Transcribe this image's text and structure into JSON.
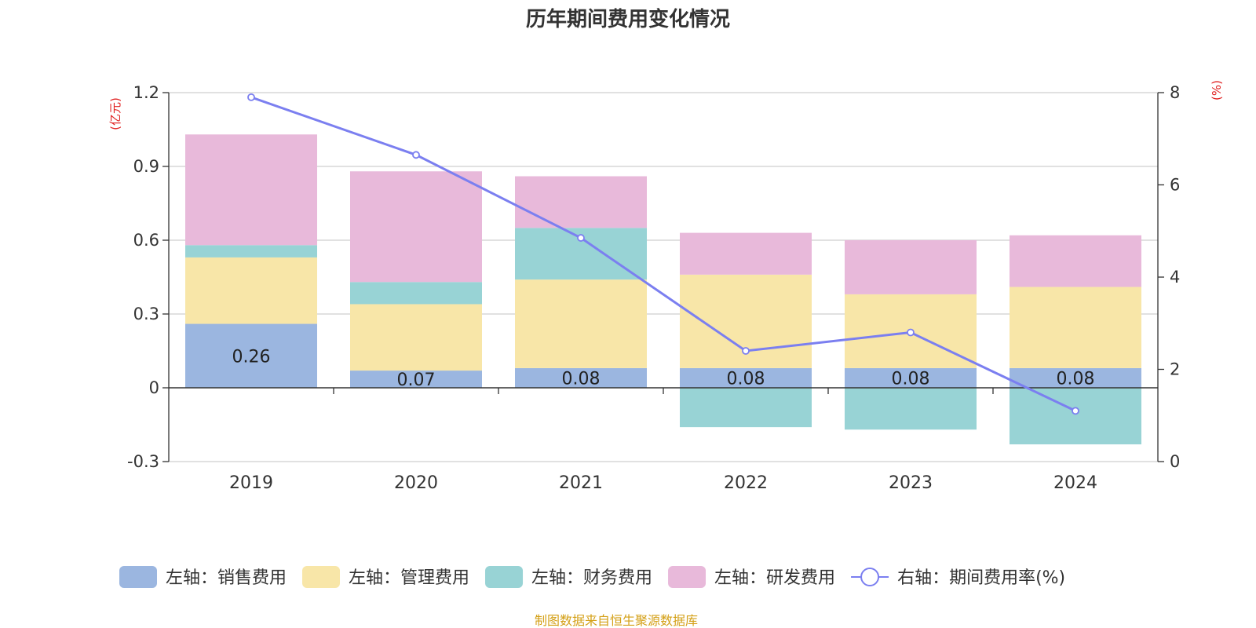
{
  "chart_data": {
    "type": "bar",
    "title": "历年期间费用变化情况",
    "source": "制图数据来自恒生聚源数据库",
    "left_axis_unit": "(亿元)",
    "right_axis_unit": "(%)",
    "categories": [
      "2019",
      "2020",
      "2021",
      "2022",
      "2023",
      "2024"
    ],
    "left_axis": {
      "min": -0.3,
      "max": 1.2,
      "ticks": [
        -0.3,
        0,
        0.3,
        0.6,
        0.9,
        1.2
      ],
      "tick_labels": [
        "-0.3",
        "0",
        "0.3",
        "0.6",
        "0.9",
        "1.2"
      ]
    },
    "right_axis": {
      "min": 0,
      "max": 8,
      "ticks": [
        0,
        2,
        4,
        6,
        8
      ],
      "tick_labels": [
        "0",
        "2",
        "4",
        "6",
        "8"
      ]
    },
    "stacked": true,
    "series": [
      {
        "name": "左轴：销售费用",
        "axis": "left",
        "kind": "bar",
        "color": "#9bb6e0",
        "values": [
          0.26,
          0.07,
          0.08,
          0.08,
          0.08,
          0.08
        ],
        "labels": [
          "0.26",
          "0.07",
          "0.08",
          "0.08",
          "0.08",
          "0.08"
        ]
      },
      {
        "name": "左轴：管理费用",
        "axis": "left",
        "kind": "bar",
        "color": "#f8e6a8",
        "values": [
          0.27,
          0.27,
          0.36,
          0.38,
          0.3,
          0.33
        ]
      },
      {
        "name": "左轴：财务费用",
        "axis": "left",
        "kind": "bar",
        "color": "#98d3d5",
        "values": [
          0.05,
          0.09,
          0.21,
          -0.16,
          -0.17,
          -0.23
        ]
      },
      {
        "name": "左轴：研发费用",
        "axis": "left",
        "kind": "bar",
        "color": "#e8b9da",
        "values": [
          0.45,
          0.45,
          0.21,
          0.17,
          0.22,
          0.21
        ]
      },
      {
        "name": "右轴：期间费用率(%)",
        "axis": "right",
        "kind": "line",
        "color": "#7b7ff0",
        "values": [
          7.9,
          6.65,
          4.85,
          2.4,
          2.8,
          1.1
        ]
      }
    ]
  }
}
